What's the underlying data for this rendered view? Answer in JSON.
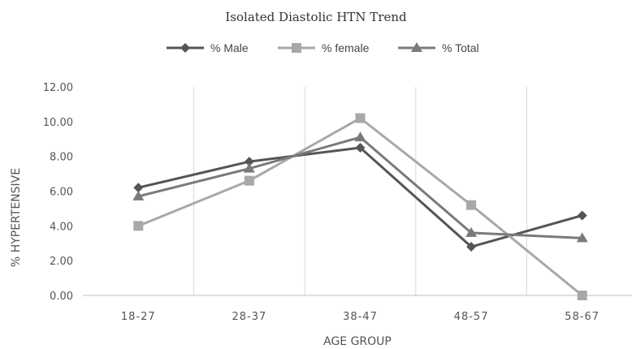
{
  "chart_data": {
    "type": "line",
    "title": "Isolated Diastolic HTN Trend",
    "xlabel": "AGE GROUP",
    "ylabel": "% HYPERTENSIVE",
    "categories": [
      "18-27",
      "28-37",
      "38-47",
      "48-57",
      "58-67"
    ],
    "ylim": [
      0,
      12
    ],
    "yticks": [
      "0.00",
      "2.00",
      "4.00",
      "6.00",
      "8.00",
      "10.00",
      "12.00"
    ],
    "legend_position": "top",
    "grid": "vertical",
    "series": [
      {
        "name": "% Male",
        "values": [
          6.2,
          7.7,
          8.5,
          2.8,
          4.6
        ],
        "color": "#555555",
        "marker": "diamond"
      },
      {
        "name": "% female",
        "values": [
          4.0,
          6.6,
          10.2,
          5.2,
          0.0
        ],
        "color": "#a8a8a8",
        "marker": "square"
      },
      {
        "name": "% Total",
        "values": [
          5.7,
          7.3,
          9.1,
          3.6,
          3.3
        ],
        "color": "#7a7a7a",
        "marker": "triangle"
      }
    ]
  }
}
